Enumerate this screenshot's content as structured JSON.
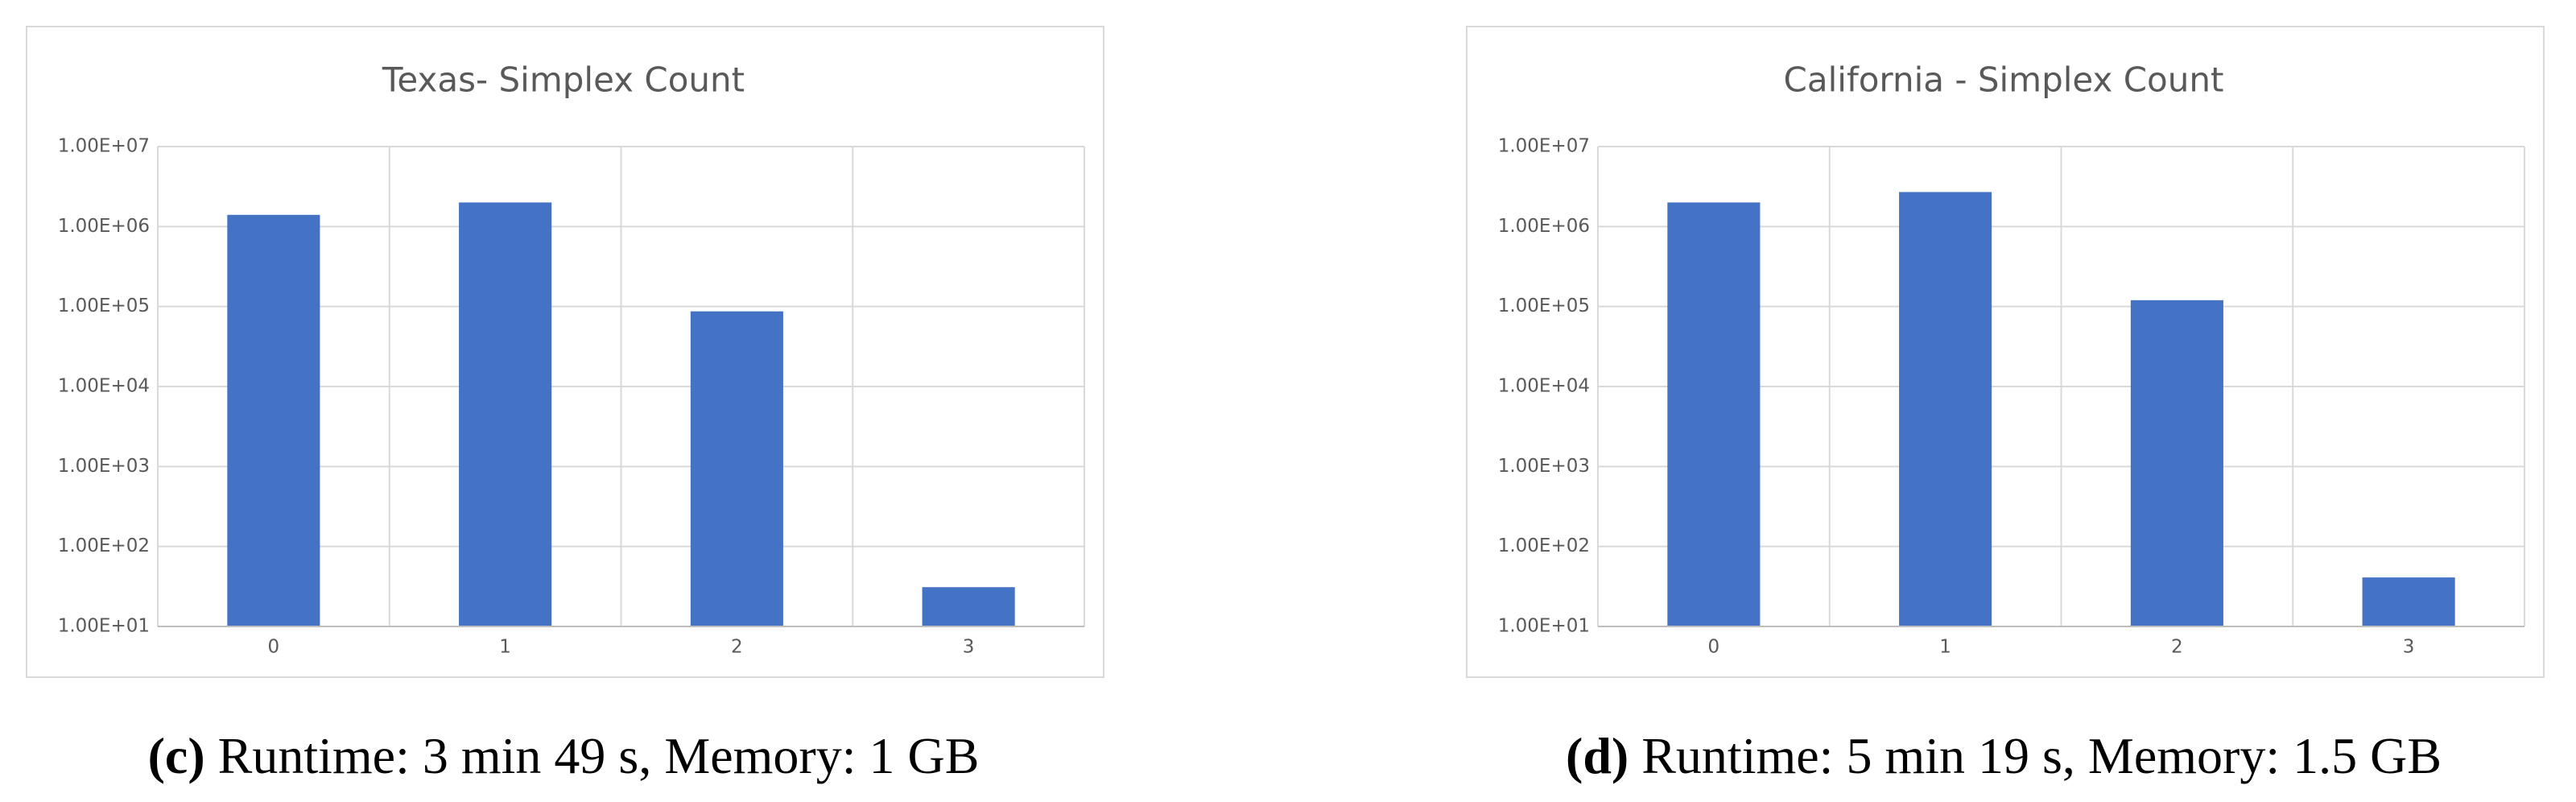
{
  "chart_data": [
    {
      "type": "bar",
      "title": "Texas- Simplex Count",
      "categories": [
        "0",
        "1",
        "2",
        "3"
      ],
      "values": [
        1400000,
        2000000,
        87000,
        31
      ],
      "color": "#4472c4",
      "log_scale": true,
      "grid": true,
      "ylim": [
        10,
        10000000
      ],
      "yticks": [
        {
          "value": 10,
          "label": "1.00E+01"
        },
        {
          "value": 100,
          "label": "1.00E+02"
        },
        {
          "value": 1000,
          "label": "1.00E+03"
        },
        {
          "value": 10000,
          "label": "1.00E+04"
        },
        {
          "value": 100000,
          "label": "1.00E+05"
        },
        {
          "value": 1000000,
          "label": "1.00E+06"
        },
        {
          "value": 10000000,
          "label": "1.00E+07"
        }
      ],
      "caption_label": "(c)",
      "caption": "Runtime: 3 min 49 s, Memory: 1 GB"
    },
    {
      "type": "bar",
      "title": "California - Simplex Count",
      "categories": [
        "0",
        "1",
        "2",
        "3"
      ],
      "values": [
        2000000,
        2700000,
        120000,
        41
      ],
      "color": "#4472c4",
      "log_scale": true,
      "grid": true,
      "ylim": [
        10,
        10000000
      ],
      "yticks": [
        {
          "value": 10,
          "label": "1.00E+01"
        },
        {
          "value": 100,
          "label": "1.00E+02"
        },
        {
          "value": 1000,
          "label": "1.00E+03"
        },
        {
          "value": 10000,
          "label": "1.00E+04"
        },
        {
          "value": 100000,
          "label": "1.00E+05"
        },
        {
          "value": 1000000,
          "label": "1.00E+06"
        },
        {
          "value": 10000000,
          "label": "1.00E+07"
        }
      ],
      "caption_label": "(d)",
      "caption": "Runtime: 5 min 19 s, Memory: 1.5 GB"
    }
  ]
}
